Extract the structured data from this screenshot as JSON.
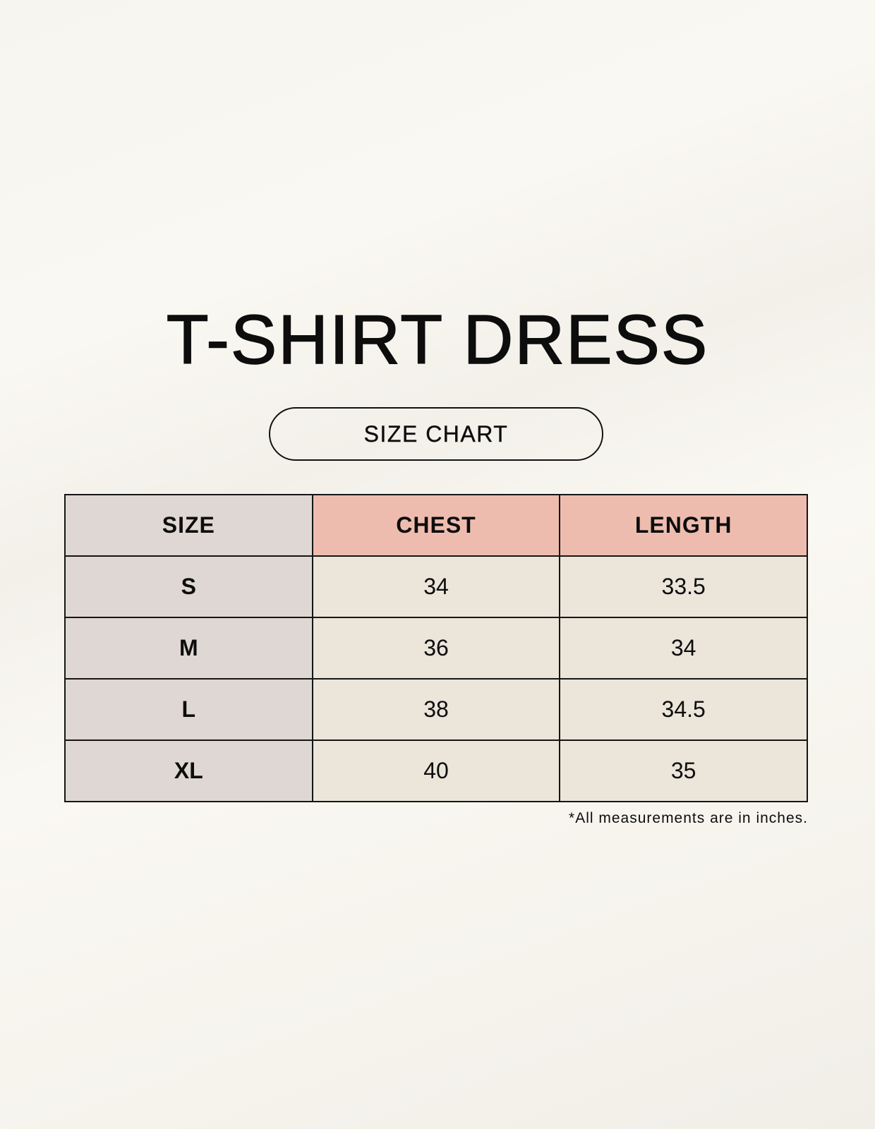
{
  "title": "T-SHIRT DRESS",
  "subtitle": "SIZE CHART",
  "table": {
    "headers": [
      "SIZE",
      "CHEST",
      "LENGTH"
    ],
    "rows": [
      [
        "S",
        "34",
        "33.5"
      ],
      [
        "M",
        "36",
        "34"
      ],
      [
        "L",
        "38",
        "34.5"
      ],
      [
        "XL",
        "40",
        "35"
      ]
    ]
  },
  "footnote": "*All measurements are in inches.",
  "colors": {
    "size_column": "#dfd7d3",
    "header_accent": "#eebcae",
    "cell": "#ebe5da"
  }
}
